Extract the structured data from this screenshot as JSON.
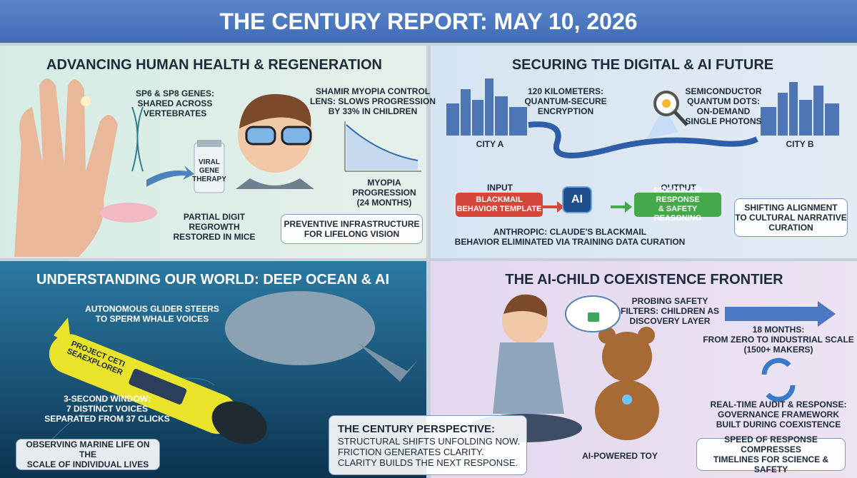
{
  "header": {
    "title": "THE CENTURY REPORT: MAY 10, 2026"
  },
  "panels": [
    {
      "title": "ADVANCING HUMAN HEALTH & REGENERATION",
      "genes": [
        "SP6 & SP8 GENES:",
        "SHARED ACROSS",
        "VERTEBRATES"
      ],
      "vial": [
        "VIRAL",
        "GENE",
        "THERAPY"
      ],
      "regrowth": [
        "PARTIAL DIGIT",
        "REGROWTH",
        "RESTORED IN MICE"
      ],
      "lens": [
        "SHAMIR MYOPIA CONTROL",
        "LENS: SLOWS PROGRESSION",
        "BY 33% IN CHILDREN"
      ],
      "graph": [
        "MYOPIA",
        "PROGRESSION",
        "(24 MONTHS)"
      ],
      "box": [
        "PREVENTIVE INFRASTRUCTURE",
        "FOR LIFELONG VISION"
      ]
    },
    {
      "title": "SECURING THE DIGITAL & AI FUTURE",
      "encryption": [
        "120 KILOMETERS:",
        "QUANTUM-SECURE",
        "ENCRYPTION"
      ],
      "dots": [
        "SEMICONDUCTOR",
        "QUANTUM DOTS:",
        "ON-DEMAND",
        "SINGLE PHOTONS"
      ],
      "city_a": "CITY A",
      "city_b": "CITY B",
      "input": "INPUT",
      "input_box": [
        "BLACKMAIL",
        "BEHAVIOR TEMPLATE"
      ],
      "chip": "AI",
      "output": "OUTPUT",
      "output_box": [
        "PRINCIPLED RESPONSE",
        "& SAFETY REASONING"
      ],
      "caption": [
        "ANTHROPIC: CLAUDE'S BLACKMAIL",
        "BEHAVIOR ELIMINATED VIA TRAINING DATA CURATION"
      ],
      "box": [
        "SHIFTING ALIGNMENT",
        "TO CULTURAL NARRATIVE",
        "CURATION"
      ]
    },
    {
      "title": "UNDERSTANDING OUR WORLD: DEEP OCEAN & AI",
      "glider": [
        "AUTONOMOUS GLIDER STEERS",
        "TO SPERM WHALE VOICES"
      ],
      "vessel": [
        "PROJECT CETI",
        "SEAEXPLORER"
      ],
      "window": [
        "3-SECOND WINDOW:",
        "7 DISTINCT VOICES",
        "SEPARATED FROM 37 CLICKS"
      ],
      "box": [
        "OBSERVING MARINE LIFE ON THE",
        "SCALE OF INDIVIDUAL LIVES"
      ]
    },
    {
      "title": "THE AI-CHILD COEXISTENCE FRONTIER",
      "probing": [
        "PROBING SAFETY",
        "FILTERS: CHILDREN AS",
        "DISCOVERY LAYER"
      ],
      "scale": [
        "18 MONTHS:",
        "FROM ZERO TO INDUSTRIAL SCALE",
        "(1500+ MAKERS)"
      ],
      "audit": [
        "REAL-TIME AUDIT & RESPONSE:",
        "GOVERNANCE FRAMEWORK",
        "BUILT DURING COEXISTENCE"
      ],
      "toy": "AI-POWERED TOY",
      "box": [
        "SPEED OF RESPONSE COMPRESSES",
        "TIMELINES FOR SCIENCE & SAFETY"
      ]
    }
  ],
  "perspective": {
    "title": "THE CENTURY PERSPECTIVE:",
    "lines": [
      "STRUCTURAL SHIFTS UNFOLDING NOW.",
      "FRICTION GENERATES CLARITY.",
      "CLARITY BUILDS THE NEXT RESPONSE."
    ]
  }
}
